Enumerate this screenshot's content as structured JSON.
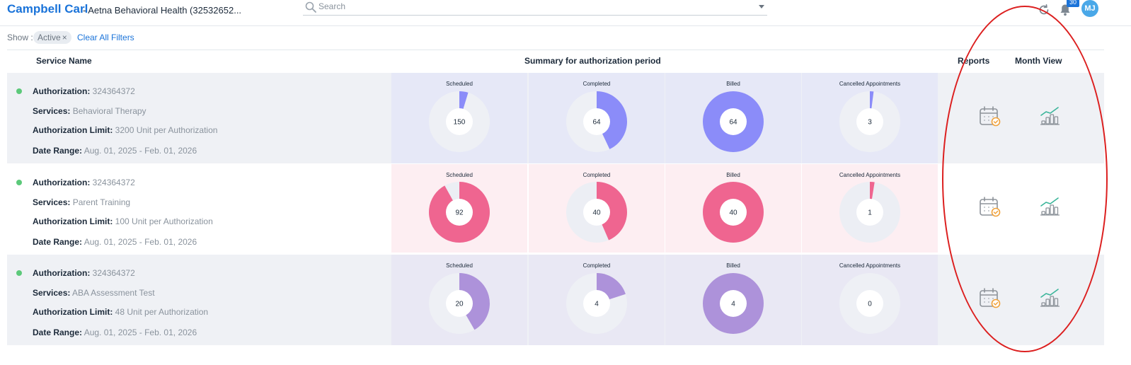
{
  "header": {
    "patient_name": "Campbell Carl",
    "payer": "- Aetna Behavioral Health (32532652...",
    "search_placeholder": "Search",
    "notification_count": "30",
    "avatar_initials": "MJ"
  },
  "filters": {
    "show_label": "Show :",
    "active_chip": "Active",
    "chip_close": "×",
    "clear_all": "Clear All Filters"
  },
  "columns": {
    "service_name": "Service Name",
    "summary": "Summary for authorization period",
    "reports": "Reports",
    "month_view": "Month View"
  },
  "labels": {
    "authorization": "Authorization:",
    "services": "Services:",
    "authorization_limit": "Authorization Limit:",
    "date_range": "Date Range:"
  },
  "rows": [
    {
      "authorization": "324364372",
      "services": "Behavioral Therapy",
      "authorization_limit": "3200 Unit per Authorization",
      "date_range": "Aug. 01, 2025 - Feb. 01, 2026",
      "accent": "#8b8cf9",
      "track": "#eef0f5",
      "bg": "#e6e8f7",
      "stripe": "#eff1f5",
      "metrics": [
        {
          "title": "Scheduled",
          "value": "150",
          "fraction": 0.047
        },
        {
          "title": "Completed",
          "value": "64",
          "fraction": 0.43
        },
        {
          "title": "Billed",
          "value": "64",
          "fraction": 1
        },
        {
          "title": "Cancelled Appointments",
          "value": "3",
          "fraction": 0.02
        }
      ]
    },
    {
      "authorization": "324364372",
      "services": "Parent Training",
      "authorization_limit": "100 Unit per Authorization",
      "date_range": "Aug. 01, 2025 - Feb. 01, 2026",
      "accent": "#ef6590",
      "track": "#eceef4",
      "bg": "#fdeef2",
      "stripe": "#ffffff",
      "metrics": [
        {
          "title": "Scheduled",
          "value": "92",
          "fraction": 0.92
        },
        {
          "title": "Completed",
          "value": "40",
          "fraction": 0.435
        },
        {
          "title": "Billed",
          "value": "40",
          "fraction": 1
        },
        {
          "title": "Cancelled Appointments",
          "value": "1",
          "fraction": 0.025
        }
      ]
    },
    {
      "authorization": "324364372",
      "services": "ABA Assessment Test",
      "authorization_limit": "48 Unit per Authorization",
      "date_range": "Aug. 01, 2025 - Feb. 01, 2026",
      "accent": "#ad92da",
      "track": "#eef0f5",
      "bg": "#e9e8f4",
      "stripe": "#eff1f5",
      "metrics": [
        {
          "title": "Scheduled",
          "value": "20",
          "fraction": 0.417
        },
        {
          "title": "Completed",
          "value": "4",
          "fraction": 0.2
        },
        {
          "title": "Billed",
          "value": "4",
          "fraction": 1
        },
        {
          "title": "Cancelled Appointments",
          "value": "0",
          "fraction": 0
        }
      ]
    }
  ],
  "icons": {
    "reports": "calendar-check-icon",
    "month_view": "bar-trend-icon",
    "search": "search-icon",
    "sync": "sync-icon",
    "bell": "bell-icon"
  }
}
